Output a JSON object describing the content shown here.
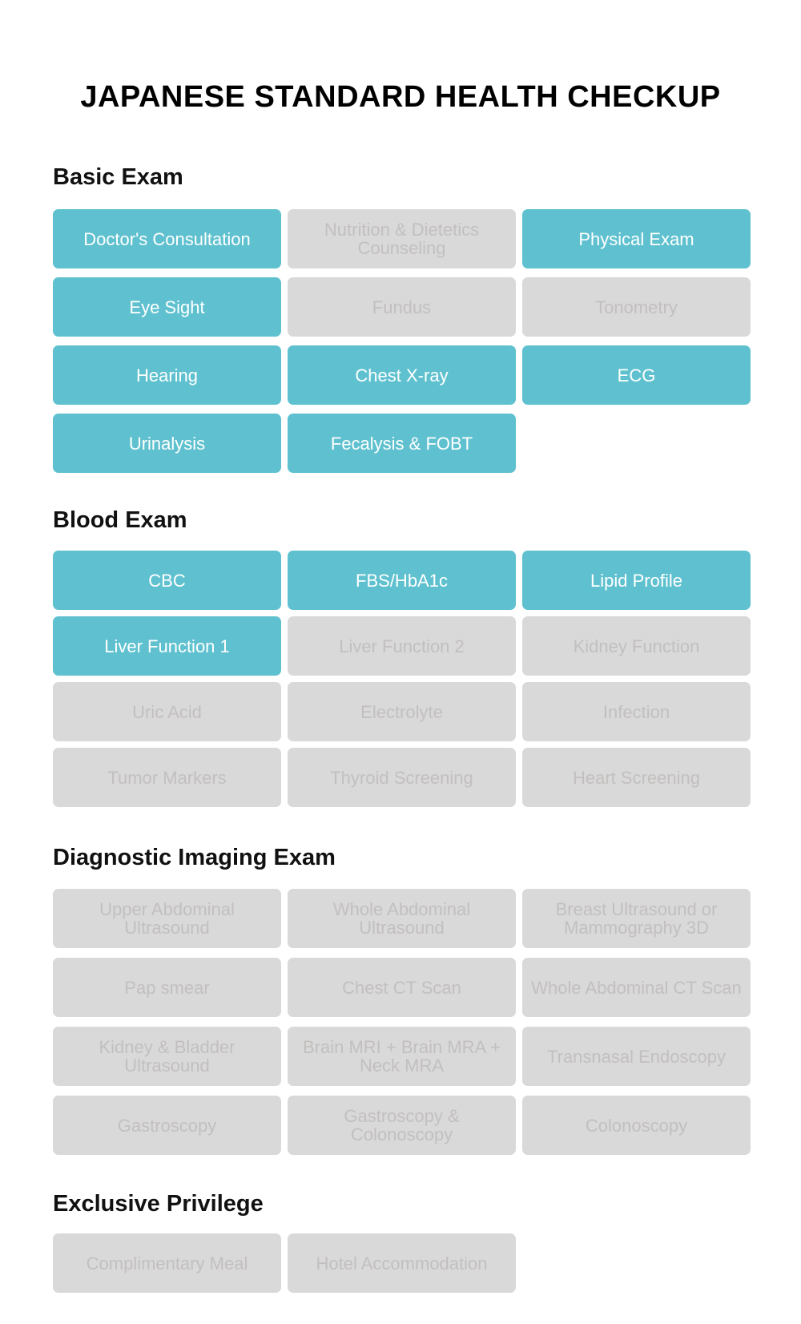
{
  "title": "JAPANESE STANDARD HEALTH CHECKUP",
  "colors": {
    "included": "#5fc1cf",
    "excluded": "#d9d9d9",
    "excluded_text": "#c3bfbf"
  },
  "sections": [
    {
      "heading": "Basic Exam",
      "items": [
        {
          "label": "Doctor's Consultation",
          "included": true
        },
        {
          "label": "Nutrition & Dietetics Counseling",
          "included": false
        },
        {
          "label": "Physical Exam",
          "included": true
        },
        {
          "label": "Eye Sight",
          "included": true
        },
        {
          "label": "Fundus",
          "included": false
        },
        {
          "label": "Tonometry",
          "included": false
        },
        {
          "label": "Hearing",
          "included": true
        },
        {
          "label": "Chest X-ray",
          "included": true
        },
        {
          "label": "ECG",
          "included": true
        },
        {
          "label": "Urinalysis",
          "included": true
        },
        {
          "label": "Fecalysis & FOBT",
          "included": true
        }
      ]
    },
    {
      "heading": "Blood Exam",
      "items": [
        {
          "label": "CBC",
          "included": true
        },
        {
          "label": "FBS/HbA1c",
          "included": true
        },
        {
          "label": "Lipid Profile",
          "included": true
        },
        {
          "label": "Liver Function 1",
          "included": true
        },
        {
          "label": "Liver Function 2",
          "included": false
        },
        {
          "label": "Kidney Function",
          "included": false
        },
        {
          "label": "Uric Acid",
          "included": false
        },
        {
          "label": "Electrolyte",
          "included": false
        },
        {
          "label": "Infection",
          "included": false
        },
        {
          "label": "Tumor Markers",
          "included": false
        },
        {
          "label": "Thyroid Screening",
          "included": false
        },
        {
          "label": "Heart Screening",
          "included": false
        }
      ]
    },
    {
      "heading": "Diagnostic Imaging Exam",
      "items": [
        {
          "label": "Upper Abdominal Ultrasound",
          "included": false
        },
        {
          "label": "Whole Abdominal Ultrasound",
          "included": false
        },
        {
          "label": "Breast Ultrasound or Mammography 3D",
          "included": false
        },
        {
          "label": "Pap smear",
          "included": false
        },
        {
          "label": "Chest CT Scan",
          "included": false
        },
        {
          "label": "Whole Abdominal CT Scan",
          "included": false
        },
        {
          "label": "Kidney & Bladder Ultrasound",
          "included": false
        },
        {
          "label": "Brain MRI + Brain MRA + Neck MRA",
          "included": false
        },
        {
          "label": "Transnasal Endoscopy",
          "included": false
        },
        {
          "label": "Gastroscopy",
          "included": false
        },
        {
          "label": "Gastroscopy & Colonoscopy",
          "included": false
        },
        {
          "label": "Colonoscopy",
          "included": false
        }
      ]
    },
    {
      "heading": "Exclusive Privilege",
      "items": [
        {
          "label": "Complimentary Meal",
          "included": false
        },
        {
          "label": "Hotel Accommodation",
          "included": false
        }
      ]
    }
  ]
}
